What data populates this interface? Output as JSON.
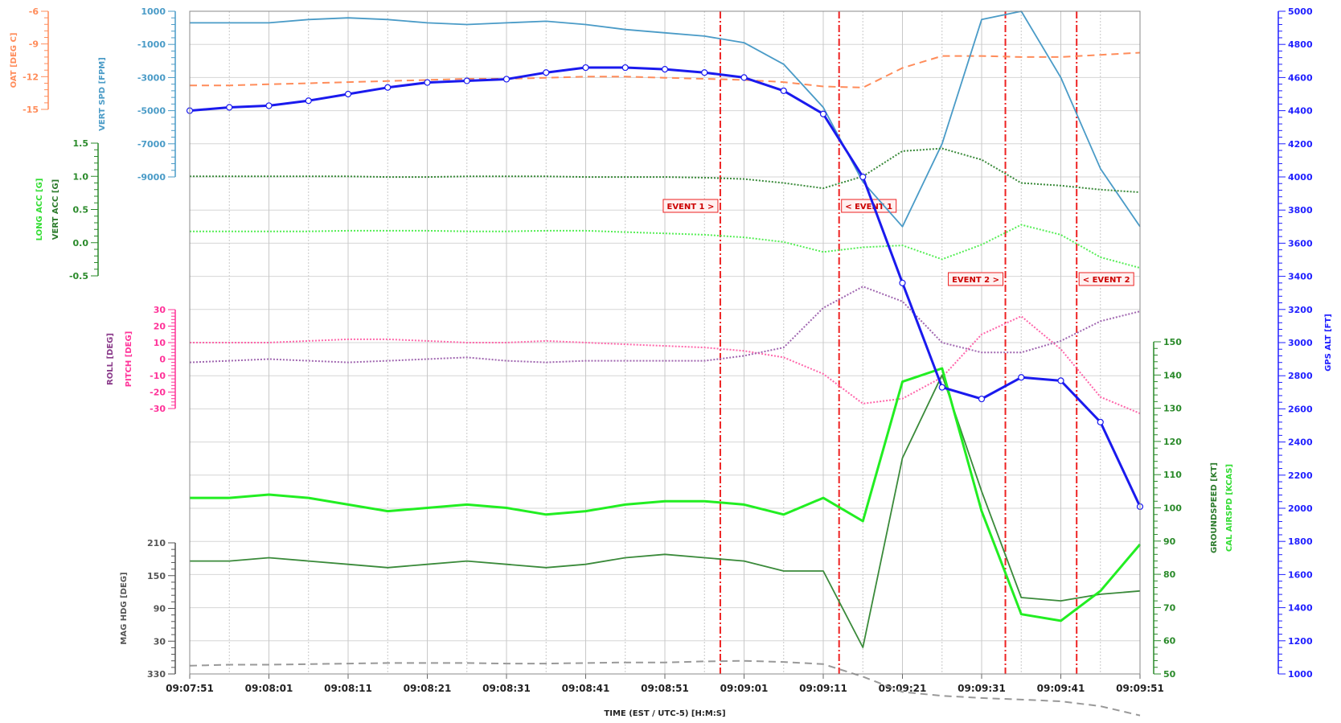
{
  "chart_data": {
    "type": "line",
    "title": "",
    "xlabel": "TIME (EST / UTC-5) [H:M:S]",
    "x": [
      "09:07:51",
      "09:07:56",
      "09:08:01",
      "09:08:06",
      "09:08:11",
      "09:08:16",
      "09:08:21",
      "09:08:26",
      "09:08:31",
      "09:08:36",
      "09:08:41",
      "09:08:46",
      "09:08:51",
      "09:08:56",
      "09:09:01",
      "09:09:06",
      "09:09:11",
      "09:09:16",
      "09:09:21",
      "09:09:26",
      "09:09:31",
      "09:09:36",
      "09:09:41",
      "09:09:46",
      "09:09:51"
    ],
    "x_ticks": [
      "09:07:51",
      "09:08:01",
      "09:08:11",
      "09:08:21",
      "09:08:31",
      "09:08:41",
      "09:08:51",
      "09:09:01",
      "09:09:11",
      "09:09:21",
      "09:09:31",
      "09:09:41",
      "09:09:51"
    ],
    "grid": true,
    "events": [
      {
        "label": "EVENT 1 >",
        "time": "09:08:58"
      },
      {
        "label": "< EVENT 1",
        "time": "09:09:13"
      },
      {
        "label": "EVENT 2 >",
        "time": "09:09:34"
      },
      {
        "label": "< EVENT 2",
        "time": "09:09:43"
      }
    ],
    "axes": [
      {
        "id": "oat",
        "label": "OAT [DEG C]",
        "color": "#ff8c5a",
        "range": [
          -15,
          -6
        ],
        "ticks": [
          "-6",
          "-9",
          "-12",
          "-15"
        ],
        "side": "left"
      },
      {
        "id": "vs",
        "label": "VERT SPD [FPM]",
        "color": "#4a9bc7",
        "range": [
          -9000,
          1000
        ],
        "ticks": [
          "1000",
          "-1000",
          "-3000",
          "-5000",
          "-7000",
          "-9000"
        ],
        "side": "left"
      },
      {
        "id": "acc",
        "labels": [
          "LONG ACC [G]",
          "VERT ACC [G]"
        ],
        "label_colors": [
          "#33dd33",
          "#2a7a2a"
        ],
        "color": "#2a8a2a",
        "range": [
          -0.5,
          1.5
        ],
        "ticks": [
          "1.5",
          "1.0",
          "0.5",
          "0.0",
          "-0.5"
        ],
        "side": "left"
      },
      {
        "id": "att",
        "labels": [
          "ROLL [DEG]",
          "PITCH [DEG]"
        ],
        "label_colors": [
          "#8a3a8a",
          "#ff3399"
        ],
        "color": "#ff3399",
        "range": [
          -30,
          30
        ],
        "ticks": [
          "30",
          "20",
          "10",
          "0",
          "-10",
          "-20",
          "-30"
        ],
        "side": "left"
      },
      {
        "id": "hdg",
        "label": "MAG HDG [DEG]",
        "color": "#555555",
        "range": [
          330,
          210
        ],
        "ticks": [
          "210",
          "150",
          "90",
          "30",
          "330"
        ],
        "side": "left"
      },
      {
        "id": "spd",
        "labels": [
          "GROUNDSPEED [KT]",
          "CAL AIRSPD [KCAS]"
        ],
        "label_colors": [
          "#2a7a2a",
          "#33dd33"
        ],
        "color": "#2a8a2a",
        "range": [
          50,
          150
        ],
        "ticks": [
          "150",
          "140",
          "130",
          "120",
          "110",
          "100",
          "90",
          "80",
          "70",
          "60",
          "50"
        ],
        "side": "right"
      },
      {
        "id": "alt",
        "label": "GPS ALT [FT]",
        "color": "#2020ff",
        "range": [
          1000,
          5000
        ],
        "ticks": [
          "5000",
          "4800",
          "4600",
          "4400",
          "4200",
          "4000",
          "3800",
          "3600",
          "3400",
          "3200",
          "3000",
          "2800",
          "2600",
          "2400",
          "2200",
          "2000",
          "1800",
          "1600",
          "1400",
          "1200",
          "1000"
        ],
        "side": "right"
      }
    ],
    "series": [
      {
        "name": "OAT [DEG C]",
        "axis": "oat",
        "color": "#ff8c5a",
        "style": "dashed",
        "values": [
          -12.8,
          -12.8,
          -12.7,
          -12.6,
          -12.5,
          -12.4,
          -12.3,
          -12.2,
          -12.2,
          -12.1,
          -12.0,
          -12.0,
          -12.1,
          -12.2,
          -12.3,
          -12.5,
          -12.9,
          -13.0,
          -11.2,
          -10.1,
          -10.1,
          -10.2,
          -10.2,
          -10.0,
          -9.8
        ]
      },
      {
        "name": "VERT SPD [FPM]",
        "axis": "vs",
        "color": "#4a9bc7",
        "style": "solid",
        "values": [
          300,
          300,
          300,
          500,
          600,
          500,
          300,
          200,
          300,
          400,
          200,
          -100,
          -300,
          -500,
          -900,
          -2200,
          -4800,
          -9300,
          -12000,
          -7000,
          500,
          1000,
          -3000,
          -8500,
          -12000
        ]
      },
      {
        "name": "VERT ACC [G]",
        "axis": "acc",
        "color": "#3a8a3a",
        "style": "dotted",
        "values": [
          1.0,
          1.0,
          1.0,
          1.0,
          1.0,
          0.99,
          0.99,
          1.0,
          1.0,
          1.0,
          0.99,
          0.99,
          0.99,
          0.98,
          0.96,
          0.9,
          0.82,
          1.0,
          1.38,
          1.42,
          1.25,
          0.9,
          0.86,
          0.8,
          0.76
        ]
      },
      {
        "name": "LONG ACC [G]",
        "axis": "acc",
        "color": "#55ee55",
        "style": "dotted",
        "values": [
          0.17,
          0.17,
          0.17,
          0.17,
          0.18,
          0.18,
          0.18,
          0.17,
          0.17,
          0.18,
          0.18,
          0.16,
          0.14,
          0.12,
          0.08,
          0.01,
          -0.14,
          -0.07,
          -0.04,
          -0.25,
          -0.03,
          0.27,
          0.12,
          -0.22,
          -0.38
        ]
      },
      {
        "name": "PITCH [DEG]",
        "axis": "att",
        "color": "#ff66aa",
        "style": "dotted",
        "values": [
          10,
          10,
          10,
          11,
          12,
          12,
          11,
          10,
          10,
          11,
          10,
          9,
          8,
          7,
          5,
          1,
          -9,
          -27,
          -24,
          -11,
          15,
          26,
          6,
          -23,
          -33
        ]
      },
      {
        "name": "ROLL [DEG]",
        "axis": "att",
        "color": "#a066b0",
        "style": "dotted",
        "values": [
          -2,
          -1,
          0,
          -1,
          -2,
          -1,
          0,
          1,
          -1,
          -2,
          -1,
          -1,
          -1,
          -1,
          2,
          7,
          31,
          44,
          35,
          10,
          4,
          4,
          11,
          23,
          29
        ]
      },
      {
        "name": "MAG HDG [DEG]",
        "axis": "hdg",
        "color": "#999999",
        "style": "dashed",
        "values": [
          345,
          347,
          347,
          348,
          349,
          350,
          350,
          350,
          349,
          349,
          350,
          351,
          351,
          353,
          354,
          352,
          348,
          325,
          297,
          290,
          286,
          283,
          280,
          271,
          254
        ]
      },
      {
        "name": "GROUNDSPEED [KT]",
        "axis": "spd",
        "color": "#3a8a3a",
        "style": "solid",
        "values": [
          84,
          84,
          85,
          84,
          83,
          82,
          83,
          84,
          83,
          82,
          83,
          85,
          86,
          85,
          84,
          81,
          81,
          58,
          115,
          140,
          105,
          73,
          72,
          74,
          75
        ]
      },
      {
        "name": "CAL AIRSPD [KCAS]",
        "axis": "spd",
        "color": "#22ee22",
        "style": "bold",
        "values": [
          103,
          103,
          104,
          103,
          101,
          99,
          100,
          101,
          100,
          98,
          99,
          101,
          102,
          102,
          101,
          98,
          103,
          96,
          138,
          142,
          99,
          68,
          66,
          75,
          89
        ]
      },
      {
        "name": "GPS ALT [FT]",
        "axis": "alt",
        "color": "#1a1aee",
        "style": "bold-markers",
        "values": [
          4400,
          4420,
          4430,
          4460,
          4500,
          4540,
          4570,
          4580,
          4590,
          4630,
          4660,
          4660,
          4650,
          4630,
          4600,
          4520,
          4380,
          4000,
          3360,
          2730,
          2660,
          2790,
          2770,
          2520,
          2010
        ]
      }
    ]
  }
}
